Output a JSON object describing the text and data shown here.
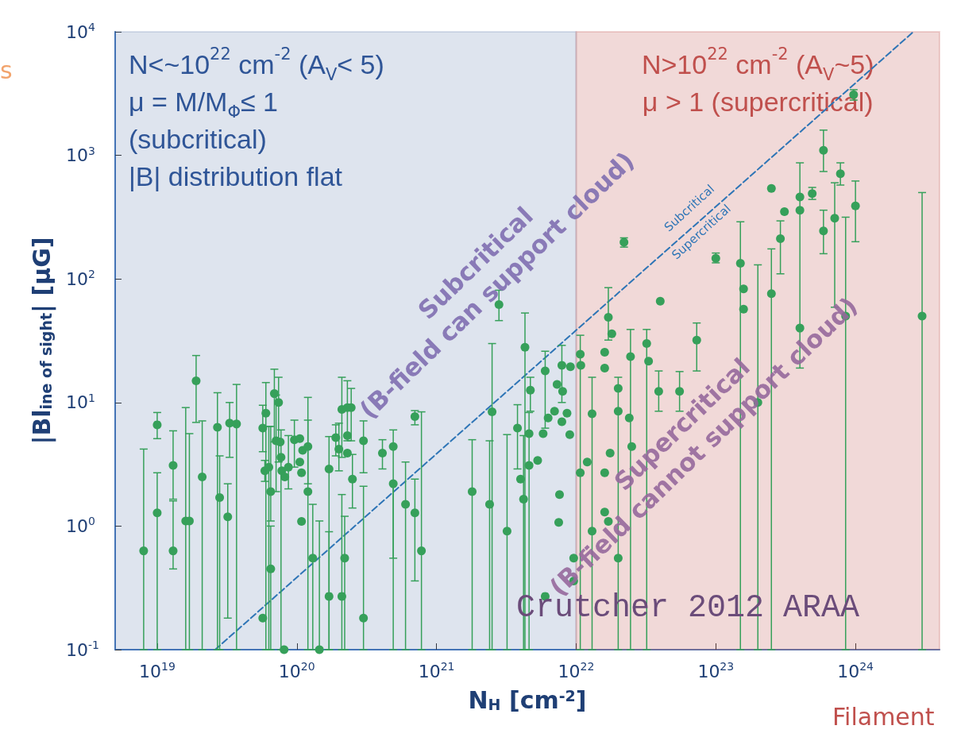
{
  "chart_data": {
    "type": "scatter",
    "xlabel": "N$_{H}$ [cm$^{-2}$]",
    "ylabel": "|Bl$_{ine of sight}$| [μG]",
    "log": "xy",
    "xlim": [
      5e+18,
      4e+24
    ],
    "ylim": [
      0.1,
      10000
    ],
    "xticks": [
      {
        "value": 1e+19,
        "label": "10$^{19}$"
      },
      {
        "value": 1e+20,
        "label": "10$^{20}$"
      },
      {
        "value": 1e+21,
        "label": "10$^{21}$"
      },
      {
        "value": 1e+22,
        "label": "10$^{22}$"
      },
      {
        "value": 1e+23,
        "label": "10$^{23}$"
      },
      {
        "value": 1e+24,
        "label": "10$^{24}$"
      }
    ],
    "yticks": [
      {
        "value": 0.1,
        "label": "10$^{-1}$"
      },
      {
        "value": 1,
        "label": "10$^{0}$"
      },
      {
        "value": 10,
        "label": "10$^{1}$"
      },
      {
        "value": 100,
        "label": "10$^{2}$"
      },
      {
        "value": 1000,
        "label": "10$^{3}$"
      },
      {
        "value": 10000,
        "label": "10$^{4}$"
      }
    ],
    "bands": [
      {
        "axis": "x",
        "from": 5e+18,
        "to": 1e+22,
        "label": "N<~10$^{22}$ cm$^{-2}$ (A$_{V}$< 5)\nμ = M/M$_{Φ}$≤ 1\n(subcritical)\n|B| distribution flat",
        "color": "#2f5597"
      },
      {
        "axis": "x",
        "from": 1e+22,
        "to": 4e+24,
        "label": "N>10$^{22}$ cm$^{-2}$ (A$_{V}$~5)\nμ > 1 (supercritical)",
        "color": "#c0504d"
      }
    ],
    "series": [
      {
        "type": "scatter",
        "color": "#36a05a",
        "marker": "circle",
        "x": [
          8e+18,
          1e+19,
          1e+19,
          1.3e+19,
          1.3e+19,
          1.6e+19,
          1.7e+19,
          1.9e+19,
          2.1e+19,
          2.7e+19,
          2.8e+19,
          3.3e+19,
          3.2e+19,
          3.7e+19,
          5.7e+19,
          5.7e+19,
          5.9e+19,
          6e+19,
          6.3e+19,
          6.5e+19,
          6.5e+19,
          6.9e+19,
          7.4e+19,
          7.1e+19,
          7.6e+19,
          7.7e+19,
          7.8e+19,
          8.2e+19,
          8.1e+19,
          8.7e+19,
          9.6e+19,
          1.05e+20,
          1.05e+20,
          1.08e+20,
          1.08e+20,
          1.1e+20,
          1.2e+20,
          1.2e+20,
          1.3e+20,
          1.45e+20,
          1.7e+20,
          1.7e+20,
          1.9e+20,
          2e+20,
          2.1e+20,
          2.1e+20,
          2.2e+20,
          2.3e+20,
          2.3e+20,
          2.3e+20,
          2.45e+20,
          2.5e+20,
          3e+20,
          3e+20,
          4.1e+20,
          4.9e+20,
          4.9e+20,
          6e+20,
          7e+20,
          7e+20,
          7.8e+20,
          1.8e+21,
          2.4e+21,
          2.5e+21,
          2.8e+21,
          3.2e+21,
          3.8e+21,
          4e+21,
          4.2e+21,
          4.3e+21,
          4.6e+21,
          4.7e+21,
          4.6e+21,
          5.3e+21,
          5.8e+21,
          6e+21,
          6e+21,
          6.3e+21,
          7e+21,
          7.3e+21,
          7.9e+21,
          8e+21,
          7.9e+21,
          7.6e+21,
          7.5e+21,
          9.1e+21,
          8.6e+21,
          9e+21,
          9.6e+21,
          9.6e+21,
          1.07e+22,
          1.08e+22,
          1.07e+22,
          1.2e+22,
          1.3e+22,
          1.3e+22,
          1.6e+22,
          1.6e+22,
          1.7e+22,
          1.8e+22,
          1.75e+22,
          1.6e+22,
          1.7e+22,
          1.6e+22,
          2e+22,
          2e+22,
          2e+22,
          2.45e+22,
          2.4e+22,
          2.5e+22,
          3.2e+22,
          3.3e+22,
          3.9e+22,
          4e+22,
          5.5e+22,
          7.3e+22,
          2.2e+22,
          1e+23,
          1.5e+23,
          1.58e+23,
          1.58e+23,
          2.5e+23,
          2.5e+23,
          3.1e+23,
          2.9e+23,
          2e+23,
          4e+23,
          4e+23,
          4e+23,
          4.9e+23,
          5.9e+23,
          5.9e+23,
          7.1e+23,
          7.8e+23,
          8.5e+23,
          9.7e+23,
          1e+24,
          3e+24
        ],
        "values": [
          0.63,
          6.6,
          1.28,
          3.1,
          0.63,
          1.1,
          1.1,
          15,
          2.5,
          6.3,
          1.7,
          6.8,
          1.19,
          6.7,
          6.2,
          0.18,
          2.8,
          8.2,
          3.0,
          1.9,
          0.45,
          11.8,
          10,
          4.9,
          4.8,
          3.6,
          2.8,
          2.5,
          0.1,
          3.0,
          5.0,
          5.1,
          3.3,
          2.7,
          1.09,
          4.1,
          1.9,
          4.4,
          0.55,
          0.1,
          2.9,
          0.27,
          5.2,
          4.2,
          8.8,
          0.27,
          0.55,
          5.4,
          3.9,
          9.1,
          9.1,
          2.4,
          0.18,
          4.9,
          3.9,
          4.4,
          2.2,
          1.5,
          7.7,
          1.28,
          0.63,
          1.9,
          1.5,
          8.4,
          62,
          0.91,
          6.2,
          2.4,
          1.65,
          28,
          5.6,
          12.6,
          3.1,
          3.4,
          5.6,
          0.27,
          18,
          7.5,
          8.5,
          14,
          20,
          12.3,
          7.0,
          1.8,
          1.07,
          19.5,
          8.2,
          5.5,
          0.55,
          0.36,
          24.6,
          20,
          2.7,
          3.3,
          8.1,
          0.91,
          25.5,
          19,
          49,
          36,
          3.9,
          1.3,
          1.09,
          2.7,
          13,
          8.5,
          0.55,
          23.5,
          7.5,
          4.4,
          30,
          21.6,
          12.3,
          66,
          12.3,
          32,
          198,
          147,
          134,
          83,
          57,
          540,
          76,
          350,
          212,
          10,
          460,
          360,
          40,
          490,
          1100,
          245,
          310,
          710,
          50,
          3100,
          390,
          50
        ],
        "errors": [
          [
            0.1,
            4.2
          ],
          [
            5.1,
            8.3
          ],
          [
            0.1,
            2.7
          ],
          [
            1.65,
            5.9
          ],
          [
            0.45,
            1.6
          ],
          [
            0.1,
            9.1
          ],
          [
            0.1,
            5.6
          ],
          [
            6.9,
            24
          ],
          [
            0.1,
            7.1
          ],
          [
            0.1,
            12
          ],
          [
            0.1,
            3.7
          ],
          [
            3.6,
            10
          ],
          [
            0.18,
            2.2
          ],
          [
            0.1,
            14
          ],
          [
            4.0,
            9.5
          ],
          null,
          [
            2.3,
            3.4
          ],
          [
            0.1,
            14.5
          ],
          [
            0.1,
            6.4
          ],
          [
            1.1,
            6.4
          ],
          [
            0.1,
            1
          ],
          [
            4.8,
            18.6
          ],
          [
            3.3,
            16
          ],
          [
            1.9,
            11.5
          ],
          null,
          [
            0.1,
            6
          ],
          null,
          null,
          null,
          [
            2.0,
            5.4
          ],
          [
            3.0,
            7.2
          ],
          null,
          null,
          null,
          null,
          null,
          [
            0.1,
            11
          ],
          [
            2.2,
            7.2
          ],
          [
            0.1,
            1.5
          ],
          [
            0.1,
            1.1
          ],
          [
            0.1,
            5.3
          ],
          [
            0.1,
            0.9
          ],
          [
            3.7,
            6.6
          ],
          [
            2.8,
            6.8
          ],
          [
            3.6,
            16
          ],
          [
            0.1,
            1.8
          ],
          [
            0.1,
            1.2
          ],
          null,
          null,
          [
            4.9,
            15
          ],
          [
            4.9,
            13
          ],
          [
            1.4,
            3.8
          ],
          [
            0.1,
            2.1
          ],
          [
            2.7,
            7.1
          ],
          [
            2.9,
            5
          ],
          [
            0.55,
            6
          ],
          [
            0.1,
            2.2
          ],
          [
            0.1,
            3.3
          ],
          [
            6.6,
            8.6
          ],
          [
            0.36,
            2.4
          ],
          [
            0.1,
            8.4
          ],
          [
            0.1,
            5
          ],
          [
            0.1,
            4.9
          ],
          [
            0.1,
            30
          ],
          [
            46,
            81
          ],
          [
            0.1,
            5.5
          ],
          [
            2.9,
            9.6
          ],
          null,
          [
            0.1,
            5.4
          ],
          [
            0.1,
            53
          ],
          [
            0.1,
            8.3
          ],
          [
            8.5,
            16
          ],
          null,
          null,
          null,
          null,
          [
            6.2,
            26
          ],
          null,
          null,
          null,
          [
            10,
            29
          ],
          null,
          null,
          null,
          null,
          null,
          null,
          null,
          null,
          null,
          [
            0.1,
            35
          ],
          null,
          null,
          null,
          null,
          [
            0.1,
            16
          ],
          null,
          null,
          [
            32,
            85
          ],
          null,
          null,
          null,
          null,
          null,
          [
            0.1,
            16
          ],
          null,
          null,
          [
            0.1,
            39
          ],
          null,
          null,
          [
            0.1,
            39
          ],
          null,
          [
            8.5,
            18
          ],
          null,
          [
            8.5,
            17.8
          ],
          [
            18,
            44
          ],
          [
            181,
            215
          ],
          [
            135,
            162
          ],
          [
            0.1,
            290
          ],
          null,
          null,
          null,
          [
            0.1,
            175
          ],
          null,
          [
            110,
            295
          ],
          [
            0.1,
            130
          ],
          [
            19,
            870
          ],
          null,
          null,
          [
            440,
            550
          ],
          [
            740,
            1600
          ],
          [
            160,
            360
          ],
          [
            59,
            600
          ],
          [
            575,
            870
          ],
          [
            0.1,
            316
          ],
          [
            2800,
            3400
          ],
          [
            200,
            620
          ],
          [
            0.1,
            500
          ]
        ]
      },
      {
        "type": "line",
        "color": "#2e75b6",
        "marker": "none",
        "line_style": "dashed",
        "x": [
          2.6e+19,
          2.6e+24
        ],
        "values": [
          0.1,
          10000
        ]
      }
    ],
    "annotations": [
      "Subcritical\n(B-field can support cloud)",
      "Supercritical\n(B-field cannot support cloud)",
      "Subcritical",
      "Supercritical",
      "Crutcher 2012 ARAA",
      "s",
      "Filament"
    ]
  }
}
